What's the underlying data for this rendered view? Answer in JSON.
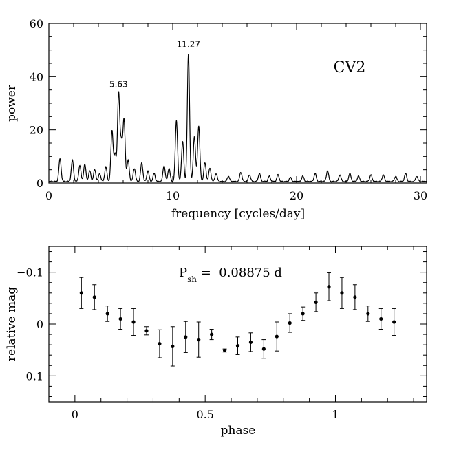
{
  "chart_data": [
    {
      "type": "line",
      "title": "",
      "label": "CV2",
      "xlabel": "frequency [cycles/day]",
      "ylabel": "power",
      "xlim": [
        0,
        30.5
      ],
      "ylim": [
        0,
        60
      ],
      "xticks": [
        0,
        10,
        20,
        30
      ],
      "yticks": [
        0,
        20,
        40,
        60
      ],
      "peak_annotations": [
        {
          "x": 5.63,
          "y": 33,
          "text": "5.63"
        },
        {
          "x": 11.27,
          "y": 48,
          "text": "11.27"
        }
      ],
      "peaks": [
        {
          "f": 0.9,
          "p": 8.5
        },
        {
          "f": 1.9,
          "p": 8
        },
        {
          "f": 2.5,
          "p": 6
        },
        {
          "f": 2.9,
          "p": 6.5
        },
        {
          "f": 3.3,
          "p": 4
        },
        {
          "f": 3.7,
          "p": 4.5
        },
        {
          "f": 4.1,
          "p": 3
        },
        {
          "f": 4.6,
          "p": 5.5
        },
        {
          "f": 5.1,
          "p": 19
        },
        {
          "f": 5.35,
          "p": 10
        },
        {
          "f": 5.63,
          "p": 33
        },
        {
          "f": 5.85,
          "p": 14
        },
        {
          "f": 6.07,
          "p": 23
        },
        {
          "f": 6.4,
          "p": 8
        },
        {
          "f": 6.9,
          "p": 5
        },
        {
          "f": 7.5,
          "p": 7
        },
        {
          "f": 8.0,
          "p": 4
        },
        {
          "f": 8.5,
          "p": 3
        },
        {
          "f": 9.3,
          "p": 6
        },
        {
          "f": 9.7,
          "p": 5
        },
        {
          "f": 10.3,
          "p": 23
        },
        {
          "f": 10.8,
          "p": 15
        },
        {
          "f": 11.27,
          "p": 48
        },
        {
          "f": 11.75,
          "p": 17
        },
        {
          "f": 12.1,
          "p": 21
        },
        {
          "f": 12.6,
          "p": 7
        },
        {
          "f": 13.0,
          "p": 5
        },
        {
          "f": 13.5,
          "p": 3
        },
        {
          "f": 14.5,
          "p": 2
        },
        {
          "f": 15.5,
          "p": 3.5
        },
        {
          "f": 16.2,
          "p": 2.5
        },
        {
          "f": 17.0,
          "p": 3
        },
        {
          "f": 17.8,
          "p": 2
        },
        {
          "f": 18.5,
          "p": 2.5
        },
        {
          "f": 19.5,
          "p": 1.5
        },
        {
          "f": 20.5,
          "p": 2
        },
        {
          "f": 21.5,
          "p": 3
        },
        {
          "f": 22.5,
          "p": 4
        },
        {
          "f": 23.5,
          "p": 2.5
        },
        {
          "f": 24.3,
          "p": 3
        },
        {
          "f": 25.0,
          "p": 2
        },
        {
          "f": 26.0,
          "p": 2.5
        },
        {
          "f": 27.0,
          "p": 2.5
        },
        {
          "f": 28.0,
          "p": 2
        },
        {
          "f": 28.8,
          "p": 3
        },
        {
          "f": 29.7,
          "p": 2
        }
      ]
    },
    {
      "type": "scatter",
      "title": "",
      "xlabel": "phase",
      "ylabel": "relative mag",
      "xlim": [
        -0.1,
        1.35
      ],
      "ylim": [
        0.15,
        -0.15
      ],
      "xticks": [
        0,
        0.5,
        1
      ],
      "xtick_labels": [
        "0",
        "0.5",
        "1"
      ],
      "yticks": [
        -0.1,
        0,
        0.1
      ],
      "ytick_labels": [
        "−0.1",
        "0",
        "0.1"
      ],
      "annotation": {
        "main": "P",
        "sub": "sh",
        "rest": " =  0.08875 d"
      },
      "points": [
        {
          "x": 0.025,
          "y": -0.06,
          "err": 0.03
        },
        {
          "x": 0.075,
          "y": -0.052,
          "err": 0.024
        },
        {
          "x": 0.125,
          "y": -0.02,
          "err": 0.015
        },
        {
          "x": 0.175,
          "y": -0.01,
          "err": 0.02
        },
        {
          "x": 0.225,
          "y": -0.004,
          "err": 0.026
        },
        {
          "x": 0.275,
          "y": 0.013,
          "err": 0.008
        },
        {
          "x": 0.325,
          "y": 0.038,
          "err": 0.027
        },
        {
          "x": 0.375,
          "y": 0.043,
          "err": 0.038
        },
        {
          "x": 0.425,
          "y": 0.025,
          "err": 0.03
        },
        {
          "x": 0.475,
          "y": 0.03,
          "err": 0.034
        },
        {
          "x": 0.525,
          "y": 0.02,
          "err": 0.01
        },
        {
          "x": 0.575,
          "y": 0.051,
          "err": 0.003
        },
        {
          "x": 0.625,
          "y": 0.042,
          "err": 0.017
        },
        {
          "x": 0.675,
          "y": 0.035,
          "err": 0.018
        },
        {
          "x": 0.725,
          "y": 0.048,
          "err": 0.018
        },
        {
          "x": 0.775,
          "y": 0.024,
          "err": 0.028
        },
        {
          "x": 0.825,
          "y": -0.002,
          "err": 0.018
        },
        {
          "x": 0.875,
          "y": -0.02,
          "err": 0.013
        },
        {
          "x": 0.925,
          "y": -0.042,
          "err": 0.018
        },
        {
          "x": 0.975,
          "y": -0.072,
          "err": 0.027
        },
        {
          "x": 1.025,
          "y": -0.06,
          "err": 0.03
        },
        {
          "x": 1.075,
          "y": -0.052,
          "err": 0.024
        },
        {
          "x": 1.125,
          "y": -0.02,
          "err": 0.015
        },
        {
          "x": 1.175,
          "y": -0.01,
          "err": 0.02
        },
        {
          "x": 1.225,
          "y": -0.004,
          "err": 0.026
        }
      ]
    }
  ]
}
